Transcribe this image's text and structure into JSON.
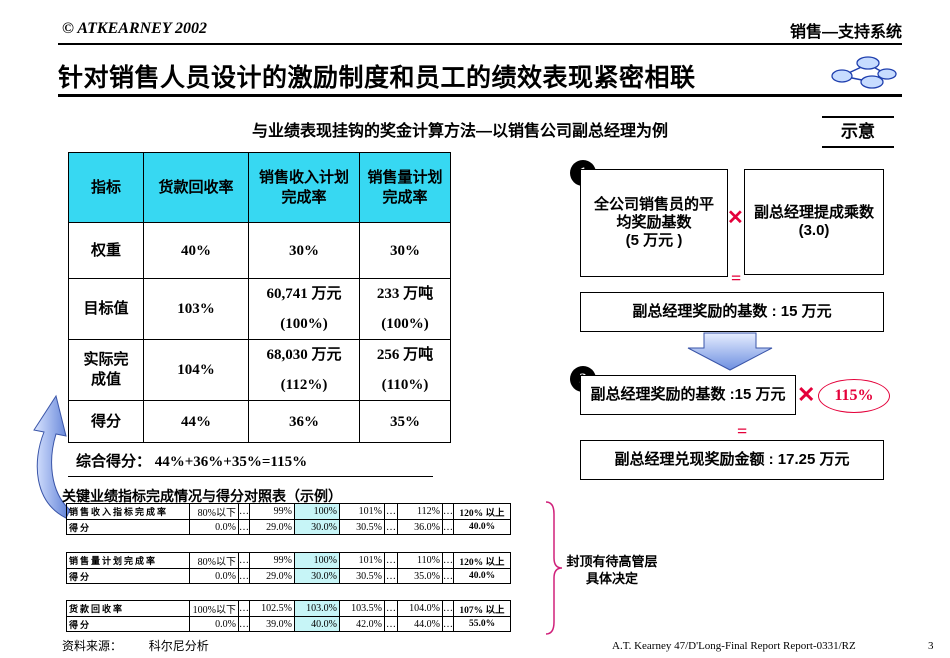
{
  "header": {
    "copyright": "© ATKEARNEY 2002",
    "system": "销售—支持系统",
    "title": "针对销售人员设计的激励制度和员工的绩效表现紧密相联",
    "subtitle": "与业绩表现挂钩的奖金计算方法—以销售公司副总经理为例",
    "tag": "示意"
  },
  "main_table": {
    "headers": [
      "指标",
      "货款回收率",
      "销售收入计划完成率",
      "销售量计划完成率"
    ],
    "rows": [
      {
        "label": "权重",
        "c1": "40%",
        "c2": "30%",
        "c3": "30%"
      },
      {
        "label": "目标值",
        "c1": "103%",
        "c2a": "60,741 万元",
        "c2b": "(100%)",
        "c3a": "233 万吨",
        "c3b": "(100%)"
      },
      {
        "label": "实际完成值",
        "c1": "104%",
        "c2a": "68,030 万元",
        "c2b": "(112%)",
        "c3a": "256 万吨",
        "c3b": "(110%)"
      },
      {
        "label": "得分",
        "c1": "44%",
        "c2": "36%",
        "c3": "35%"
      }
    ],
    "total": "综合得分： 44%+36%+35%=115%"
  },
  "diagram": {
    "step1": "1",
    "step2": "2",
    "box_base": "全公司销售员的平均奖励基数（5 万元）",
    "box_base_l1": "全公司销售员的平",
    "box_base_l2": "均奖励基数",
    "box_base_l3": "(5 万元 )",
    "box_multiplier_l1": "副总经理提成乘数",
    "box_multiplier_l2": "(3.0)",
    "times": "✕",
    "equals": "=",
    "box_bonus_base": "副总经理奖励的基数 : 15 万元",
    "box_bonus_base2": "副总经理奖励的基数 :15 万元",
    "score": "115%",
    "box_final": "副总经理兑现奖励金额 : 17.25 万元"
  },
  "bottom": {
    "title": "关键业绩指标完成情况与得分对照表（示例）",
    "tables": [
      {
        "row1_label": "销售收入指标完成率",
        "row2_label": "得分",
        "row1": [
          "80%以下",
          "…",
          "99%",
          "100%",
          "101%",
          "…",
          "112%",
          "…",
          "120% 以上"
        ],
        "row2": [
          "0.0%",
          "…",
          "29.0%",
          "30.0%",
          "30.5%",
          "…",
          "36.0%",
          "…",
          "40.0%"
        ]
      },
      {
        "row1_label": "销售量计划完成率",
        "row2_label": "得分",
        "row1": [
          "80%以下",
          "…",
          "99%",
          "100%",
          "101%",
          "…",
          "110%",
          "…",
          "120% 以上"
        ],
        "row2": [
          "0.0%",
          "…",
          "29.0%",
          "30.0%",
          "30.5%",
          "…",
          "35.0%",
          "…",
          "40.0%"
        ]
      },
      {
        "row1_label": "货款回收率",
        "row2_label": "得分",
        "row1": [
          "100%以下",
          "…",
          "102.5%",
          "103.0%",
          "103.5%",
          "…",
          "104.0%",
          "…",
          "107% 以上"
        ],
        "row2": [
          "0.0%",
          "…",
          "39.0%",
          "40.0%",
          "42.0%",
          "…",
          "44.0%",
          "…",
          "55.0%"
        ]
      }
    ],
    "brace_note": "封顶有待高管层具体决定"
  },
  "footer": {
    "source_label": "资料来源：",
    "source": "科尔尼分析",
    "ref": "A.T. Kearney 47/D'Long-Final Report Report-0331/RZ",
    "page": "3"
  },
  "colors": {
    "header_cyan": "#37d8f2",
    "highlight_cyan": "#c7f5f7",
    "red": "#e4003a",
    "arrow_blue": "#6d8fe0"
  }
}
